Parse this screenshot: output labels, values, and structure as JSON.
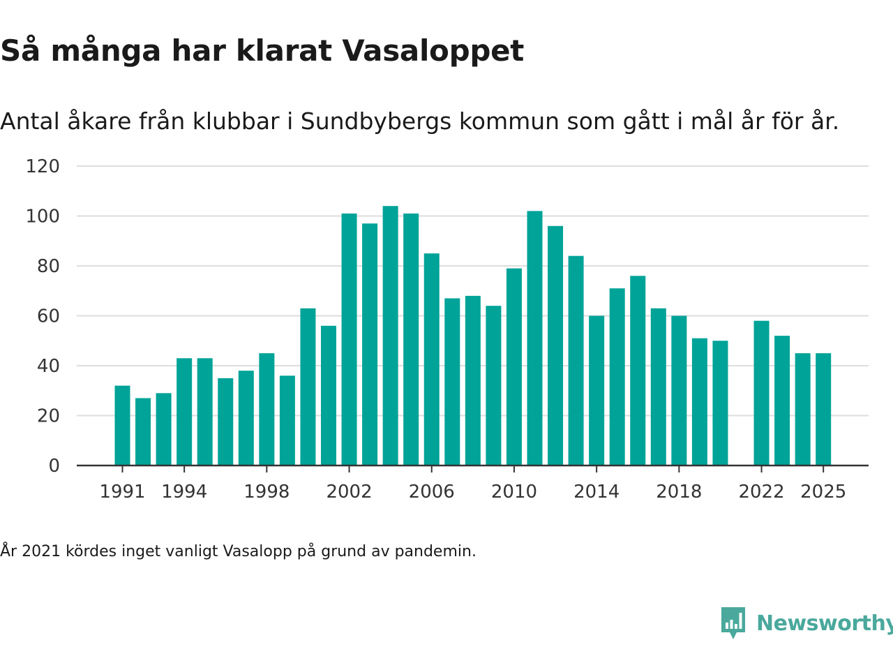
{
  "title": "Så många har klarat Vasaloppet",
  "subtitle": "Antal åkare från klubbar i Sundbybergs kommun som gått i mål år för år.",
  "note": "År 2021 kördes inget vanligt Vasalopp på grund av pandemin.",
  "brand": {
    "name": "Newsworthy",
    "icon": "newsworthy-logo-icon",
    "color": "#4aa89c"
  },
  "colors": {
    "bar": "#00a398",
    "grid": "#dddddd",
    "axis": "#333333"
  },
  "chart_data": {
    "type": "bar",
    "title": "Så många har klarat Vasaloppet",
    "xlabel": "",
    "ylabel": "",
    "ylim": [
      0,
      120
    ],
    "yticks": [
      "0",
      "20",
      "40",
      "60",
      "80",
      "100",
      "120"
    ],
    "xticks": [
      "1991",
      "1994",
      "1998",
      "2002",
      "2006",
      "2010",
      "2014",
      "2018",
      "2022",
      "2025"
    ],
    "grid": true,
    "categories": [
      "1991",
      "1992",
      "1993",
      "1994",
      "1995",
      "1996",
      "1997",
      "1998",
      "1999",
      "2000",
      "2001",
      "2002",
      "2003",
      "2004",
      "2005",
      "2006",
      "2007",
      "2008",
      "2009",
      "2010",
      "2011",
      "2012",
      "2013",
      "2014",
      "2015",
      "2016",
      "2017",
      "2018",
      "2019",
      "2020",
      "2021",
      "2022",
      "2023",
      "2024",
      "2025"
    ],
    "values": [
      32,
      27,
      29,
      43,
      43,
      35,
      38,
      45,
      36,
      63,
      56,
      101,
      97,
      104,
      101,
      85,
      67,
      68,
      64,
      79,
      102,
      96,
      84,
      60,
      71,
      76,
      63,
      60,
      51,
      50,
      null,
      58,
      52,
      45,
      45
    ]
  }
}
